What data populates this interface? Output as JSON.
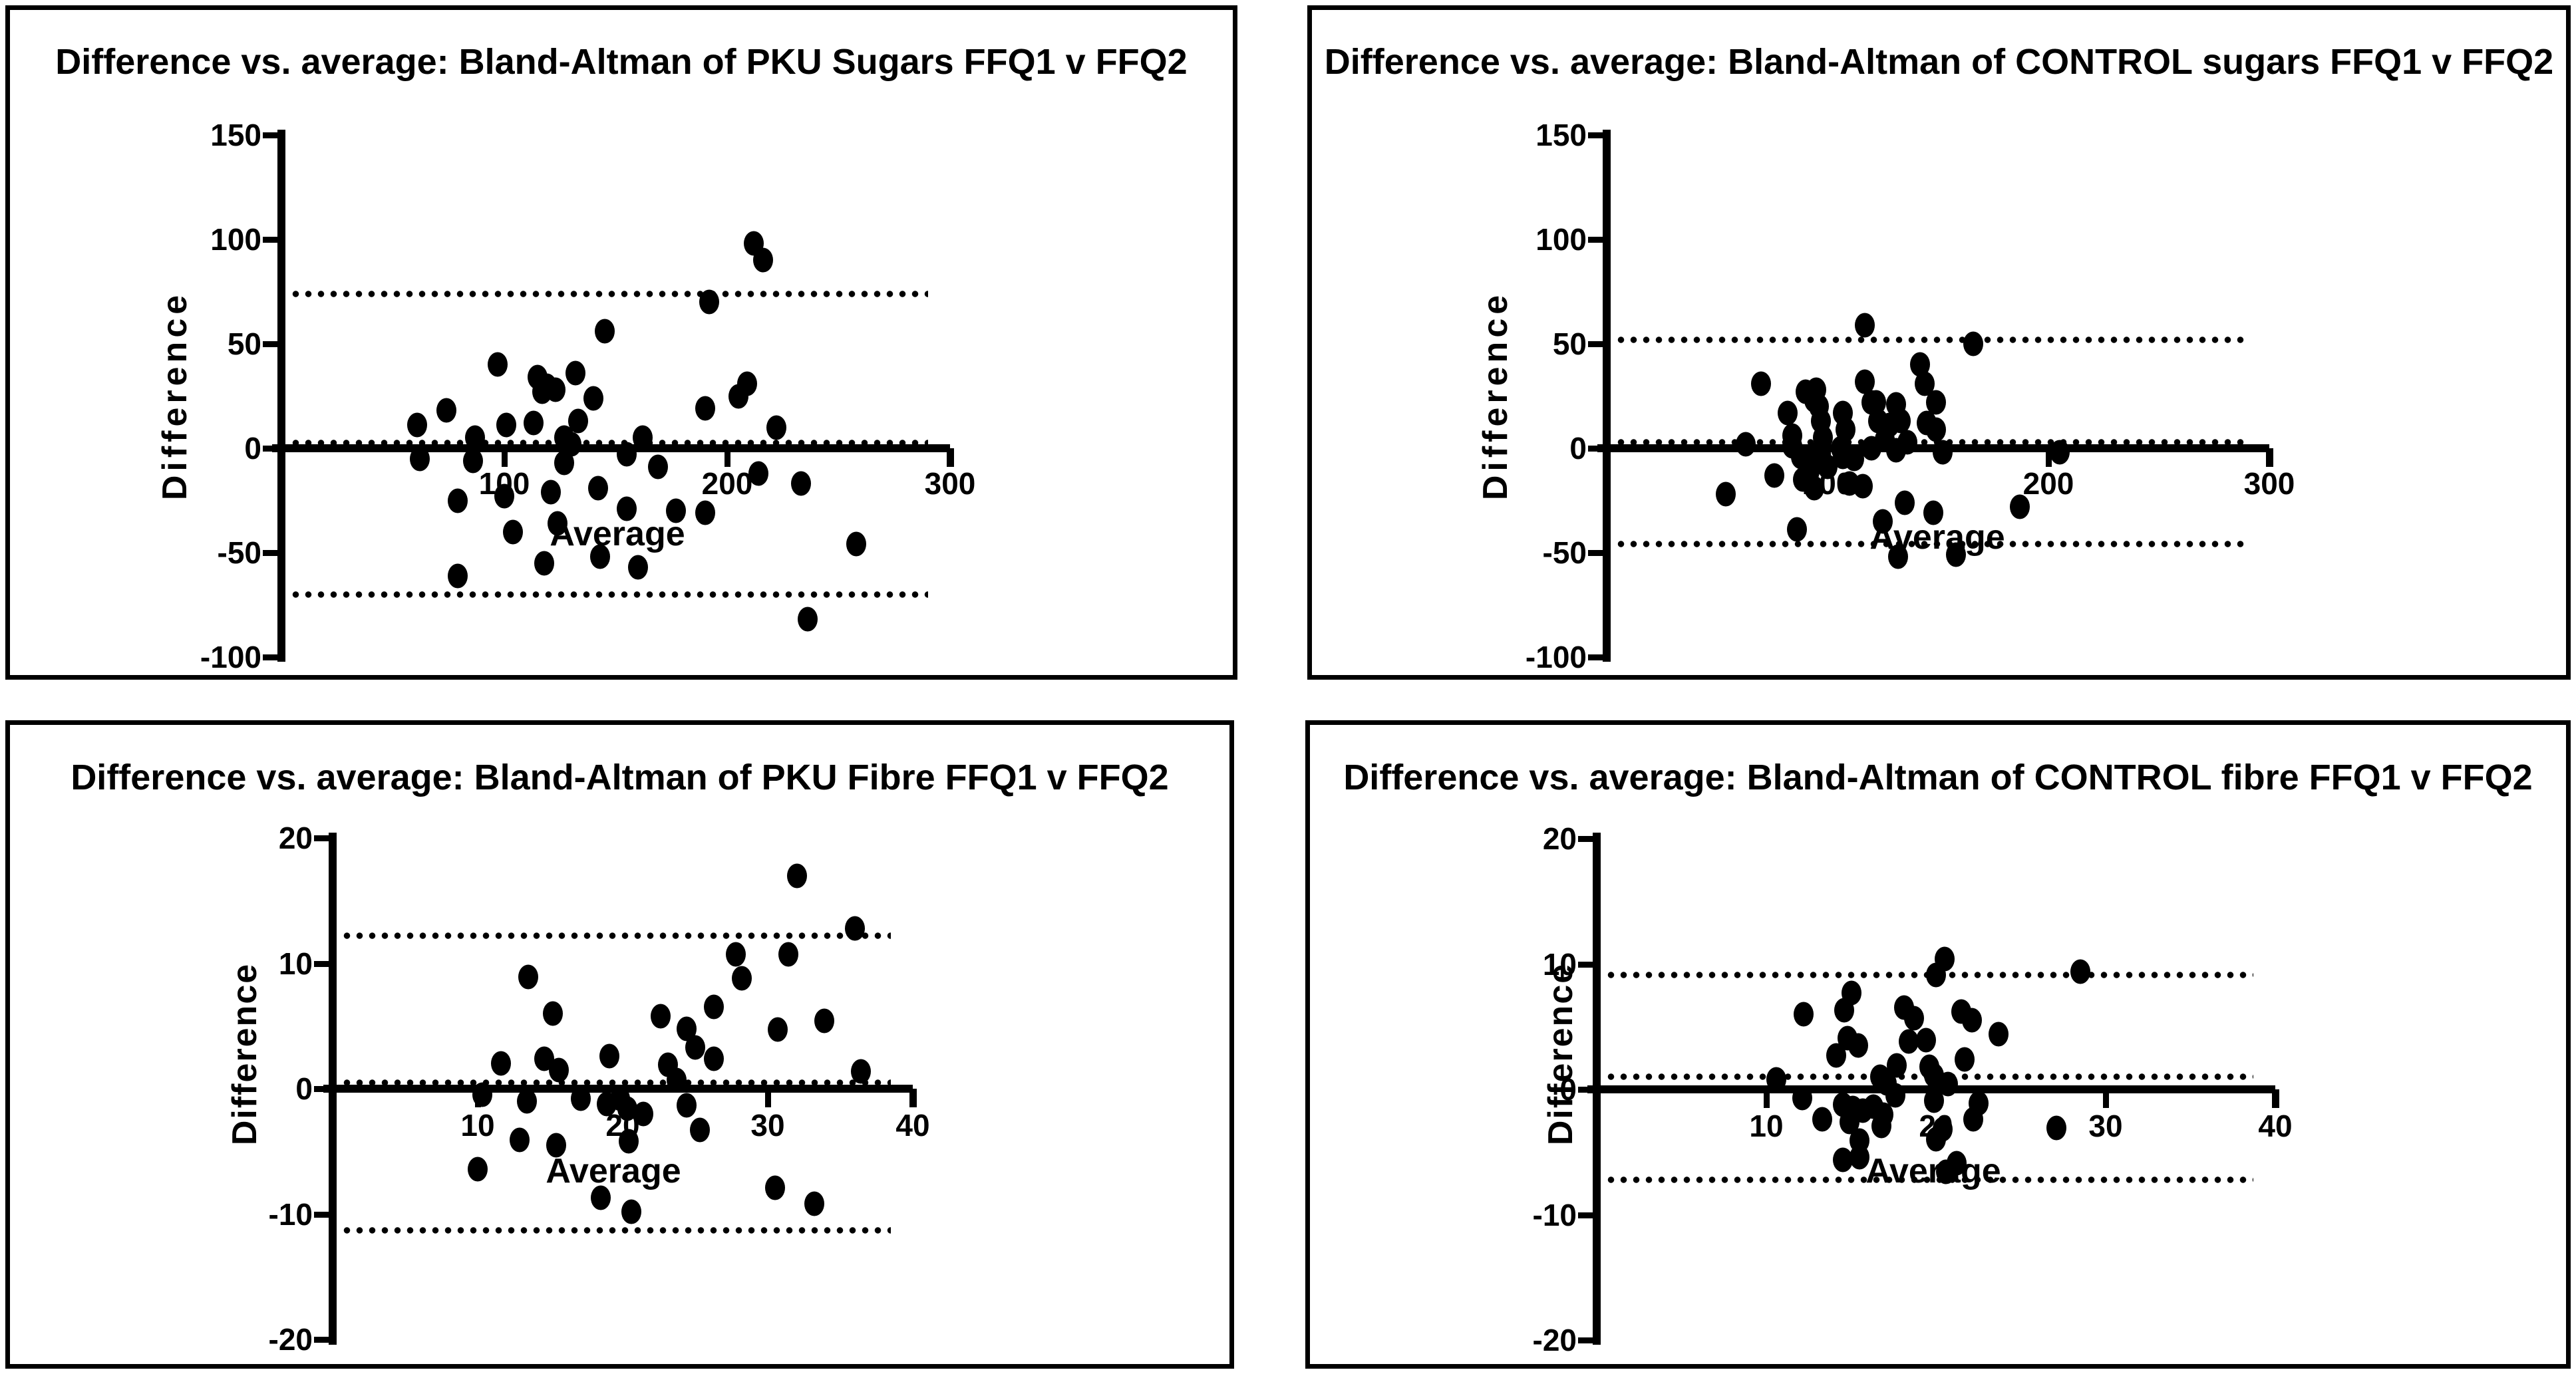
{
  "figure": {
    "background_color": "#ffffff",
    "ink_color": "#000000",
    "layout": "2x2 grid of Bland-Altman plots"
  },
  "chart_data": [
    {
      "type": "scatter",
      "title": "Difference vs. average: Bland-Altman of PKU Sugars FFQ1 v FFQ2",
      "xlabel": "Average",
      "ylabel": "Difference",
      "xlim": [
        0,
        300
      ],
      "ylim": [
        -100,
        150
      ],
      "xticks": [
        100,
        200,
        300
      ],
      "yticks": [
        150,
        100,
        50,
        0,
        -50,
        -100
      ],
      "grid": false,
      "legend": "none",
      "mean_diff_line": 2.5,
      "upper_loa_line": 74,
      "lower_loa_line": -70,
      "points": [
        [
          212,
          98
        ],
        [
          216,
          90
        ],
        [
          192,
          70
        ],
        [
          145,
          56
        ],
        [
          97,
          40
        ],
        [
          115,
          34
        ],
        [
          119,
          30
        ],
        [
          117,
          27
        ],
        [
          123,
          28
        ],
        [
          132,
          36
        ],
        [
          140,
          24
        ],
        [
          209,
          31
        ],
        [
          205,
          25
        ],
        [
          74,
          18
        ],
        [
          61,
          11
        ],
        [
          101,
          11
        ],
        [
          113,
          12
        ],
        [
          133,
          13
        ],
        [
          190,
          19
        ],
        [
          222,
          10
        ],
        [
          87,
          5
        ],
        [
          127,
          5
        ],
        [
          130,
          2
        ],
        [
          162,
          5
        ],
        [
          155,
          -3
        ],
        [
          62,
          -5
        ],
        [
          86,
          -6
        ],
        [
          127,
          -7
        ],
        [
          169,
          -9
        ],
        [
          214,
          -12
        ],
        [
          233,
          -17
        ],
        [
          79,
          -25
        ],
        [
          100,
          -23
        ],
        [
          121,
          -21
        ],
        [
          142,
          -19
        ],
        [
          155,
          -29
        ],
        [
          177,
          -30
        ],
        [
          190,
          -31
        ],
        [
          104,
          -40
        ],
        [
          124,
          -36
        ],
        [
          118,
          -55
        ],
        [
          143,
          -52
        ],
        [
          160,
          -57
        ],
        [
          79,
          -61
        ],
        [
          258,
          -46
        ],
        [
          236,
          -82
        ]
      ]
    },
    {
      "type": "scatter",
      "title": "Difference vs. average: Bland-Altman of CONTROL sugars FFQ1 v FFQ2",
      "xlabel": "Average",
      "ylabel": "Difference",
      "xlim": [
        0,
        300
      ],
      "ylim": [
        -100,
        150
      ],
      "xticks": [
        100,
        200,
        300
      ],
      "yticks": [
        150,
        100,
        50,
        0,
        -50,
        -100
      ],
      "grid": false,
      "legend": "none",
      "mean_diff_line": 3,
      "upper_loa_line": 52,
      "lower_loa_line": -46,
      "points": [
        [
          117,
          59
        ],
        [
          166,
          50
        ],
        [
          142,
          40
        ],
        [
          70,
          31
        ],
        [
          117,
          32
        ],
        [
          144,
          31
        ],
        [
          95,
          28
        ],
        [
          90,
          27
        ],
        [
          94,
          23
        ],
        [
          120,
          22
        ],
        [
          122,
          22
        ],
        [
          131,
          21
        ],
        [
          96,
          20
        ],
        [
          107,
          17
        ],
        [
          82,
          17
        ],
        [
          133,
          13
        ],
        [
          97,
          13
        ],
        [
          145,
          12
        ],
        [
          123,
          13
        ],
        [
          128,
          11
        ],
        [
          149,
          22
        ],
        [
          108,
          9
        ],
        [
          149,
          9
        ],
        [
          98,
          5
        ],
        [
          84,
          6
        ],
        [
          126,
          4
        ],
        [
          136,
          3
        ],
        [
          63,
          2
        ],
        [
          84,
          1
        ],
        [
          106,
          0
        ],
        [
          120,
          0
        ],
        [
          152,
          -2
        ],
        [
          205,
          -2
        ],
        [
          88,
          -4
        ],
        [
          95,
          -3
        ],
        [
          112,
          -5
        ],
        [
          131,
          -1
        ],
        [
          107,
          -4
        ],
        [
          100,
          -9
        ],
        [
          92,
          -11
        ],
        [
          76,
          -13
        ],
        [
          89,
          -15
        ],
        [
          94,
          -19
        ],
        [
          110,
          -17
        ],
        [
          116,
          -18
        ],
        [
          54,
          -22
        ],
        [
          135,
          -26
        ],
        [
          148,
          -31
        ],
        [
          187,
          -28
        ],
        [
          125,
          -35
        ],
        [
          86,
          -39
        ],
        [
          132,
          -52
        ],
        [
          158,
          -51
        ]
      ]
    },
    {
      "type": "scatter",
      "title": "Difference vs. average: Bland-Altman of PKU Fibre FFQ1 v FFQ2",
      "xlabel": "Average",
      "ylabel": "Difference",
      "xlim": [
        0,
        40
      ],
      "ylim": [
        -20,
        20
      ],
      "xticks": [
        10,
        20,
        30,
        40
      ],
      "yticks": [
        20,
        10,
        0,
        -10,
        -20
      ],
      "grid": false,
      "legend": "none",
      "mean_diff_line": 0.5,
      "upper_loa_line": 12.2,
      "lower_loa_line": -11.3,
      "points": [
        [
          32,
          17
        ],
        [
          36,
          12.8
        ],
        [
          27.8,
          10.7
        ],
        [
          31.4,
          10.7
        ],
        [
          28.2,
          8.8
        ],
        [
          13.5,
          8.9
        ],
        [
          15.2,
          6
        ],
        [
          22.6,
          5.8
        ],
        [
          26.3,
          6.5
        ],
        [
          24.4,
          4.8
        ],
        [
          25,
          3.3
        ],
        [
          30.7,
          4.7
        ],
        [
          33.9,
          5.4
        ],
        [
          19.1,
          2.6
        ],
        [
          14.6,
          2.4
        ],
        [
          11.6,
          2
        ],
        [
          15.6,
          1.5
        ],
        [
          23.1,
          1.9
        ],
        [
          26.3,
          2.4
        ],
        [
          36.4,
          1.4
        ],
        [
          23.7,
          0.7
        ],
        [
          10.3,
          -0.5
        ],
        [
          13.4,
          -1
        ],
        [
          17.1,
          -0.8
        ],
        [
          18.9,
          -1.2
        ],
        [
          19.8,
          -0.8
        ],
        [
          20.3,
          -1.6
        ],
        [
          21.4,
          -2
        ],
        [
          24.4,
          -1.3
        ],
        [
          25.3,
          -3.3
        ],
        [
          12.9,
          -4.1
        ],
        [
          15.4,
          -4.5
        ],
        [
          20.4,
          -4.2
        ],
        [
          10,
          -6.4
        ],
        [
          18.5,
          -8.7
        ],
        [
          20.6,
          -9.8
        ],
        [
          30.5,
          -7.9
        ],
        [
          33.2,
          -9.2
        ]
      ]
    },
    {
      "type": "scatter",
      "title": "Difference vs. average: Bland-Altman of CONTROL fibre FFQ1 v FFQ2",
      "xlabel": "Average",
      "ylabel": "Difference",
      "xlim": [
        0,
        40
      ],
      "ylim": [
        -20,
        20
      ],
      "xticks": [
        10,
        20,
        30,
        40
      ],
      "yticks": [
        20,
        10,
        0,
        -10,
        -20
      ],
      "grid": false,
      "legend": "none",
      "mean_diff_line": 1.0,
      "upper_loa_line": 9.1,
      "lower_loa_line": -7.2,
      "points": [
        [
          20.5,
          10.4
        ],
        [
          20,
          9.1
        ],
        [
          28.5,
          9.4
        ],
        [
          15,
          7.7
        ],
        [
          14.6,
          6.3
        ],
        [
          12.2,
          6
        ],
        [
          18.1,
          6.5
        ],
        [
          18.7,
          5.7
        ],
        [
          21.5,
          6.2
        ],
        [
          22.1,
          5.5
        ],
        [
          23.7,
          4.4
        ],
        [
          14.8,
          4.1
        ],
        [
          15.4,
          3.5
        ],
        [
          18.4,
          3.8
        ],
        [
          19.4,
          3.9
        ],
        [
          14.1,
          2.7
        ],
        [
          17.7,
          1.9
        ],
        [
          19.6,
          1.8
        ],
        [
          21.7,
          2.4
        ],
        [
          19.9,
          1.1
        ],
        [
          10.6,
          0.8
        ],
        [
          16.7,
          1
        ],
        [
          17.1,
          0.5
        ],
        [
          20.7,
          0.4
        ],
        [
          12.1,
          -0.7
        ],
        [
          14.5,
          -1.2
        ],
        [
          15.1,
          -1.5
        ],
        [
          15.7,
          -1.7
        ],
        [
          16.3,
          -1.4
        ],
        [
          16.9,
          -2
        ],
        [
          17.6,
          -0.5
        ],
        [
          19.9,
          -0.9
        ],
        [
          22.5,
          -1.1
        ],
        [
          13.3,
          -2.4
        ],
        [
          14.9,
          -2.6
        ],
        [
          16.8,
          -2.9
        ],
        [
          20.4,
          -3.2
        ],
        [
          22.2,
          -2.4
        ],
        [
          27.1,
          -3.1
        ],
        [
          15.5,
          -4.1
        ],
        [
          20,
          -4
        ],
        [
          14.5,
          -5.6
        ],
        [
          15.5,
          -5.4
        ],
        [
          21.2,
          -5.9
        ],
        [
          20.6,
          -6.6
        ]
      ]
    }
  ]
}
